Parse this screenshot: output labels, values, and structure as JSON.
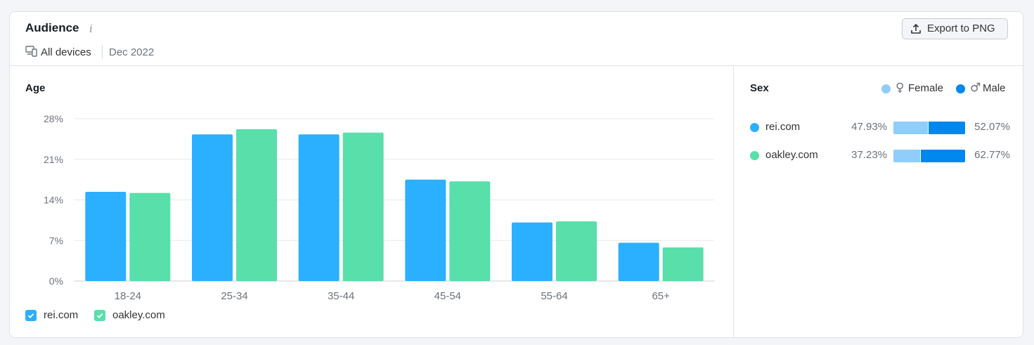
{
  "header": {
    "title": "Audience",
    "info_icon": "info-icon",
    "devices_label": "All devices",
    "date_label": "Dec 2022",
    "export_label": "Export to PNG"
  },
  "age": {
    "title": "Age"
  },
  "sex": {
    "title": "Sex",
    "legend": [
      {
        "label": "Female",
        "symbol": "♀",
        "color": "#8fcdfa"
      },
      {
        "label": "Male",
        "symbol": "♂",
        "color": "#0088ee"
      }
    ],
    "rows": [
      {
        "domain": "rei.com",
        "color": "#2bb0ff",
        "female": "47.93%",
        "male": "52.07%",
        "female_share": 47.93
      },
      {
        "domain": "oakley.com",
        "color": "#59dfaa",
        "female": "37.23%",
        "male": "62.77%",
        "female_share": 37.23
      }
    ]
  },
  "chart_data": {
    "type": "bar",
    "title": "Age",
    "categories": [
      "18-24",
      "25-34",
      "35-44",
      "45-54",
      "55-64",
      "65+"
    ],
    "series": [
      {
        "name": "rei.com",
        "color": "#2bb0ff",
        "values": [
          15.4,
          25.3,
          25.3,
          17.5,
          10.1,
          6.6
        ]
      },
      {
        "name": "oakley.com",
        "color": "#59dfaa",
        "values": [
          15.2,
          26.2,
          25.6,
          17.2,
          10.3,
          5.8
        ]
      }
    ],
    "y_ticks": [
      "0%",
      "7%",
      "14%",
      "21%",
      "28%"
    ],
    "ylim": [
      0,
      28
    ],
    "grid": true,
    "legend_position": "bottom-left"
  }
}
